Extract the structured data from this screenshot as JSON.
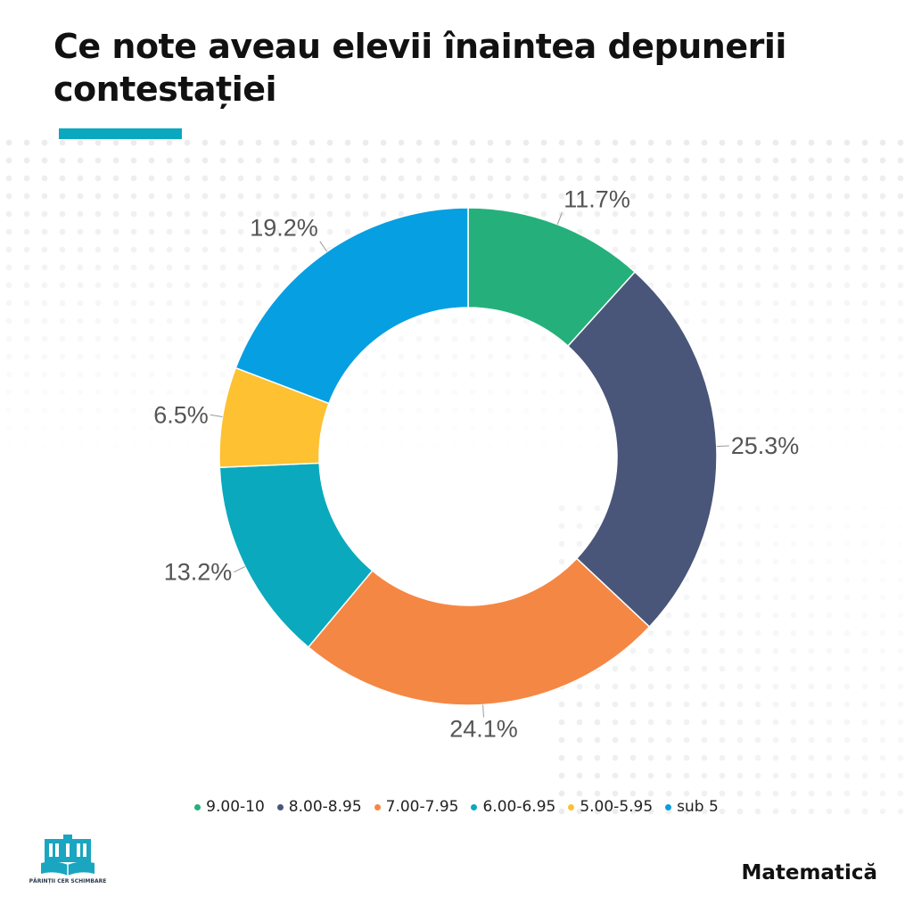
{
  "header": {
    "title": "Ce note aveau elevii înaintea depunerii contestației"
  },
  "chart_data": {
    "type": "pie",
    "variant": "donut",
    "unit": "%",
    "start_angle_deg": 0,
    "direction": "clockwise",
    "categories": [
      "9.00-10",
      "8.00-8.95",
      "7.00-7.95",
      "6.00-6.95",
      "5.00-5.95",
      "sub 5"
    ],
    "values": [
      11.7,
      25.3,
      24.1,
      13.2,
      6.5,
      19.2
    ],
    "labels": [
      "11.7%",
      "25.3%",
      "24.1%",
      "13.2%",
      "6.5%",
      "19.2%"
    ],
    "colors": [
      "#25b07b",
      "#495679",
      "#f58744",
      "#0aa9bd",
      "#fdc131",
      "#069fe2"
    ],
    "legend_position": "bottom"
  },
  "footer": {
    "logo_text": "PĂRINȚII CER SCHIMBARE",
    "subject": "Matematică"
  }
}
